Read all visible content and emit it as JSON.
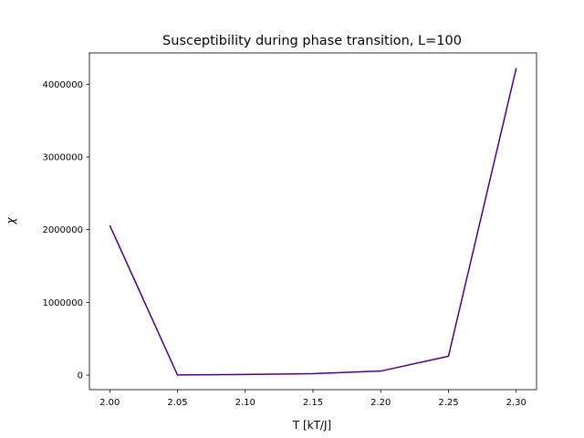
{
  "chart_data": {
    "type": "line",
    "title": "Susceptibility during phase transition, L=100",
    "xlabel": "T [kT/J]",
    "ylabel": "χ",
    "x": [
      2.0,
      2.05,
      2.1,
      2.15,
      2.2,
      2.25,
      2.3
    ],
    "series": [
      {
        "values": [
          2060000,
          2000,
          8000,
          20000,
          55000,
          260000,
          4220000
        ],
        "color": "#4b0082"
      }
    ],
    "xlim": [
      1.985,
      2.315
    ],
    "ylim": [
      -200000,
      4430000
    ],
    "xticks": [
      2.0,
      2.05,
      2.1,
      2.15,
      2.2,
      2.25,
      2.3
    ],
    "xtick_labels": [
      "2.00",
      "2.05",
      "2.10",
      "2.15",
      "2.20",
      "2.25",
      "2.30"
    ],
    "yticks": [
      0,
      1000000,
      2000000,
      3000000,
      4000000
    ],
    "ytick_labels": [
      "0",
      "1000000",
      "2000000",
      "3000000",
      "4000000"
    ],
    "grid": false,
    "legend": "none"
  }
}
